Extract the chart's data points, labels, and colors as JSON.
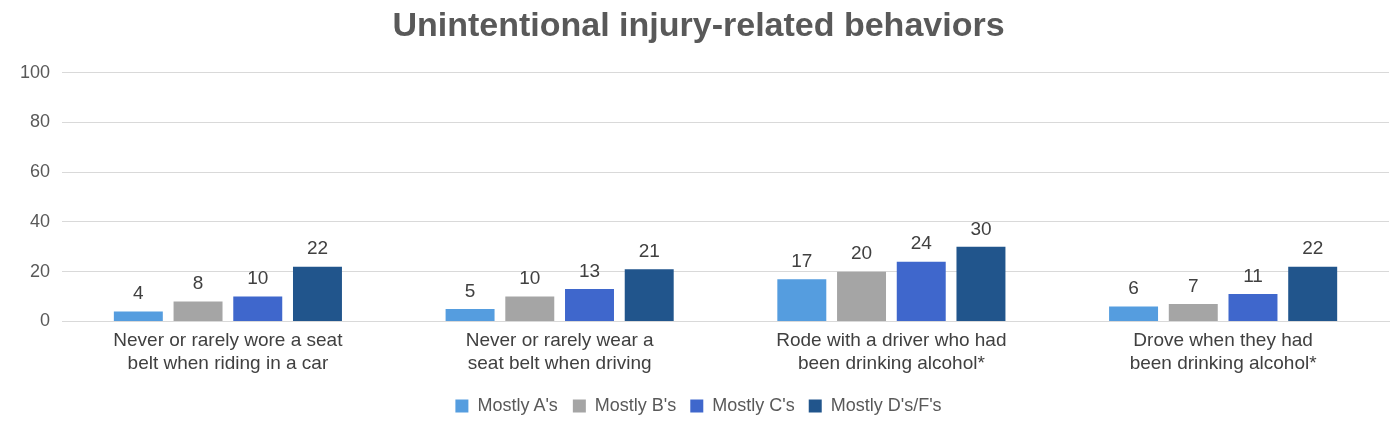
{
  "chart_data": {
    "type": "bar",
    "title": "Unintentional injury-related behaviors",
    "categories": [
      "Never or rarely wore a seat belt when riding in a car",
      "Never or rarely wear a seat belt when driving",
      "Rode with a driver who had been drinking alcohol*",
      "Drove when they had been drinking alcohol*"
    ],
    "series": [
      {
        "name": "Mostly A's",
        "color": "#559ddf",
        "values": [
          4,
          5,
          17,
          6
        ]
      },
      {
        "name": "Mostly B's",
        "color": "#a5a5a5",
        "values": [
          8,
          10,
          20,
          7
        ]
      },
      {
        "name": "Mostly C's",
        "color": "#3f67cc",
        "values": [
          10,
          13,
          24,
          11
        ]
      },
      {
        "name": "Mostly D's/F's",
        "color": "#21558c",
        "values": [
          22,
          21,
          30,
          22
        ]
      }
    ],
    "ylim": [
      0,
      100
    ],
    "yticks": [
      0,
      20,
      40,
      60,
      80,
      100
    ],
    "grid": "y",
    "legend": "bottom",
    "data_labels": true
  }
}
